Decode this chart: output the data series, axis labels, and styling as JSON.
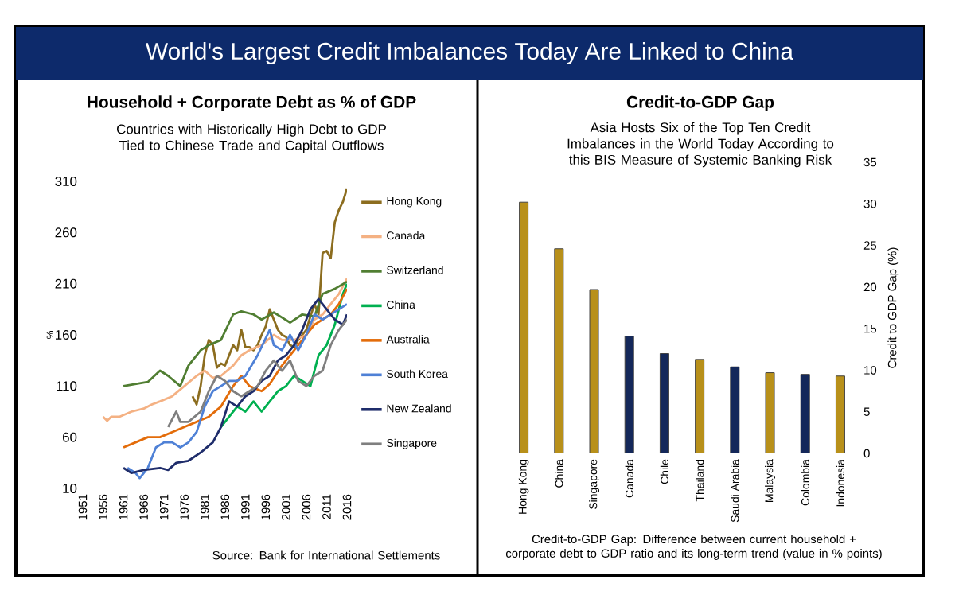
{
  "chart_data": [
    {
      "type": "other",
      "title": "World's Largest Credit Imbalances Today Are Linked to China"
    },
    {
      "type": "line",
      "title": "Household + Corporate Debt as % of GDP",
      "subtitle": "Countries with Historically High Debt to GDP Tied to Chinese Trade and Capital Outflows",
      "ylabel": "%",
      "xlim": [
        1951,
        2016
      ],
      "xticks": [
        1951,
        1956,
        1961,
        1966,
        1971,
        1976,
        1981,
        1986,
        1991,
        1996,
        2001,
        2006,
        2011,
        2016
      ],
      "ylim": [
        10,
        310
      ],
      "yticks": [
        10,
        60,
        110,
        160,
        210,
        260,
        310
      ],
      "legend": "right",
      "annotations": [
        "Source: Bank for International Settlements"
      ],
      "series": [
        {
          "name": "Hong Kong",
          "color": "#8c6d1f",
          "x": [
            1978,
            1979,
            1980,
            1981,
            1982,
            1983,
            1984,
            1985,
            1986,
            1987,
            1988,
            1989,
            1990,
            1991,
            1992,
            1993,
            1994,
            1995,
            1996,
            1997,
            1998,
            1999,
            2000,
            2001,
            2002,
            2003,
            2004,
            2005,
            2006,
            2007,
            2008,
            2009,
            2010,
            2011,
            2012,
            2013,
            2014,
            2015,
            2016
          ],
          "values": [
            100,
            92,
            110,
            140,
            155,
            150,
            128,
            132,
            130,
            140,
            150,
            145,
            165,
            148,
            148,
            145,
            150,
            160,
            168,
            185,
            175,
            165,
            160,
            158,
            150,
            148,
            155,
            160,
            165,
            178,
            190,
            180,
            240,
            242,
            235,
            270,
            282,
            290,
            303
          ]
        },
        {
          "name": "Canada",
          "color": "#f4b183",
          "x": [
            1956,
            1957,
            1958,
            1960,
            1963,
            1966,
            1968,
            1970,
            1973,
            1976,
            1979,
            1981,
            1983,
            1985,
            1988,
            1990,
            1992,
            1995,
            1998,
            2000,
            2003,
            2006,
            2008,
            2010,
            2012,
            2014,
            2016
          ],
          "values": [
            80,
            76,
            80,
            80,
            85,
            88,
            92,
            95,
            100,
            110,
            120,
            125,
            118,
            120,
            130,
            140,
            145,
            150,
            160,
            155,
            155,
            160,
            175,
            180,
            190,
            200,
            215
          ]
        },
        {
          "name": "Switzerland",
          "color": "#507e32",
          "x": [
            1961,
            1964,
            1967,
            1970,
            1972,
            1975,
            1977,
            1980,
            1982,
            1985,
            1988,
            1990,
            1993,
            1995,
            1998,
            2000,
            2002,
            2005,
            2008,
            2010,
            2013,
            2016
          ],
          "values": [
            110,
            112,
            114,
            125,
            120,
            110,
            130,
            145,
            150,
            155,
            180,
            183,
            180,
            175,
            182,
            177,
            172,
            180,
            178,
            200,
            205,
            212
          ]
        },
        {
          "name": "China",
          "color": "#00b050",
          "x": [
            1985,
            1987,
            1989,
            1991,
            1993,
            1995,
            1997,
            1999,
            2001,
            2003,
            2005,
            2007,
            2009,
            2011,
            2013,
            2015,
            2016
          ],
          "values": [
            70,
            80,
            90,
            85,
            95,
            85,
            95,
            105,
            110,
            120,
            115,
            110,
            140,
            150,
            170,
            200,
            210
          ]
        },
        {
          "name": "Australia",
          "color": "#e36c0a",
          "x": [
            1961,
            1964,
            1967,
            1970,
            1973,
            1976,
            1979,
            1982,
            1985,
            1988,
            1990,
            1992,
            1995,
            1997,
            2000,
            2003,
            2006,
            2008,
            2010,
            2012,
            2014,
            2016
          ],
          "values": [
            50,
            55,
            60,
            60,
            65,
            70,
            75,
            80,
            90,
            110,
            120,
            110,
            105,
            112,
            130,
            145,
            160,
            170,
            175,
            180,
            190,
            205
          ]
        },
        {
          "name": "South Korea",
          "color": "#4f81d6",
          "x": [
            1962,
            1964,
            1965,
            1967,
            1969,
            1971,
            1973,
            1975,
            1977,
            1979,
            1981,
            1983,
            1985,
            1987,
            1989,
            1991,
            1994,
            1997,
            1998,
            2000,
            2002,
            2004,
            2006,
            2008,
            2010,
            2012,
            2014,
            2016
          ],
          "values": [
            30,
            25,
            20,
            30,
            50,
            55,
            55,
            50,
            55,
            65,
            90,
            105,
            110,
            115,
            115,
            120,
            140,
            165,
            150,
            145,
            160,
            145,
            160,
            180,
            175,
            180,
            185,
            190
          ]
        },
        {
          "name": "New Zealand",
          "color": "#1f2d6b",
          "x": [
            1961,
            1963,
            1966,
            1970,
            1972,
            1974,
            1977,
            1980,
            1983,
            1985,
            1987,
            1989,
            1991,
            1993,
            1995,
            1997,
            1999,
            2001,
            2003,
            2005,
            2007,
            2009,
            2011,
            2013,
            2015,
            2016
          ],
          "values": [
            30,
            25,
            28,
            30,
            28,
            35,
            37,
            45,
            55,
            70,
            95,
            90,
            100,
            105,
            115,
            120,
            135,
            140,
            150,
            165,
            185,
            195,
            185,
            175,
            170,
            180
          ]
        },
        {
          "name": "Singapore",
          "color": "#7f7f7f",
          "x": [
            1972,
            1974,
            1975,
            1977,
            1980,
            1982,
            1984,
            1986,
            1988,
            1990,
            1992,
            1994,
            1996,
            1998,
            2000,
            2002,
            2004,
            2006,
            2008,
            2010,
            2012,
            2014,
            2016
          ],
          "values": [
            70,
            85,
            75,
            75,
            85,
            105,
            120,
            115,
            105,
            100,
            105,
            110,
            125,
            135,
            125,
            135,
            115,
            110,
            120,
            125,
            150,
            165,
            175
          ]
        }
      ]
    },
    {
      "type": "bar",
      "title": "Credit-to-GDP Gap",
      "subtitle": "Asia Hosts Six of the Top Ten Credit Imbalances in the World Today According to this BIS Measure of Systemic Banking Risk",
      "categories": [
        "Hong Kong",
        "China",
        "Singapore",
        "Canada",
        "Chile",
        "Thailand",
        "Saudi Arabia",
        "Malaysia",
        "Colombia",
        "Indonesia"
      ],
      "values": [
        30.2,
        24.6,
        19.7,
        14.1,
        12.0,
        11.3,
        10.4,
        9.7,
        9.5,
        9.3
      ],
      "colors": [
        "#b8901a",
        "#b8901a",
        "#b8901a",
        "#14285a",
        "#14285a",
        "#b8901a",
        "#14285a",
        "#b8901a",
        "#14285a",
        "#b8901a"
      ],
      "ylabel": "Credit to GDP Gap (%)",
      "ylim": [
        0,
        35
      ],
      "yticks": [
        0,
        5,
        10,
        15,
        20,
        25,
        30,
        35
      ],
      "annotations": [
        "Credit-to-GDP Gap: Difference between current household + corporate debt to GDP ratio and its long-term trend (value in % points)"
      ]
    }
  ]
}
